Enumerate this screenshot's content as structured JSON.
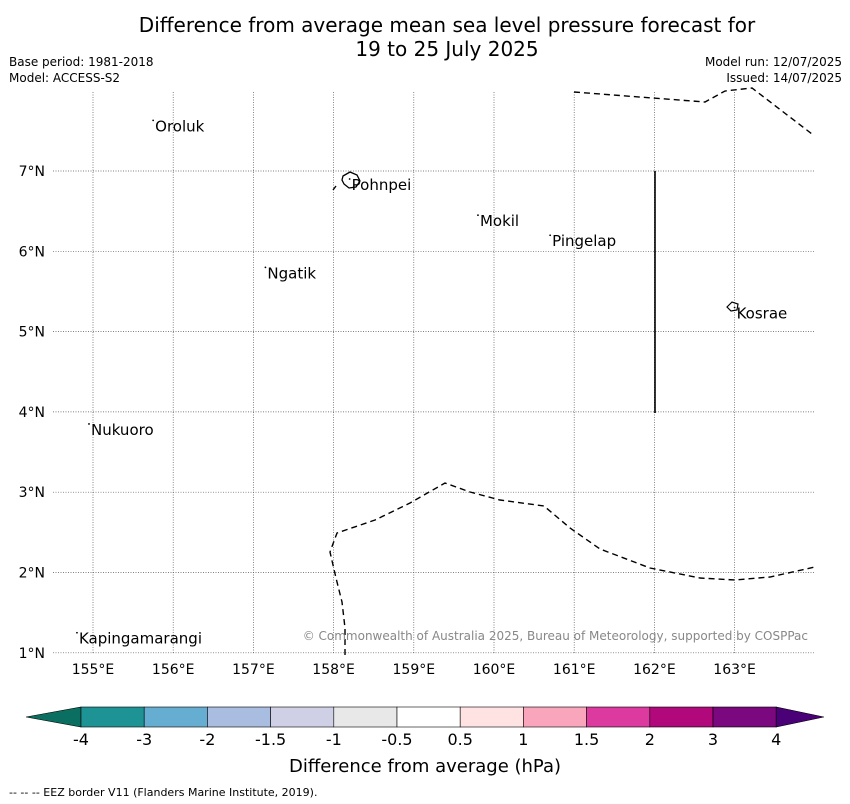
{
  "title_line1": "Difference from average mean sea level pressure forecast for",
  "title_line2": "19 to 25 July 2025",
  "base_period": "Base period: 1981-2018",
  "model": "Model: ACCESS-S2",
  "model_run": "Model run: 12/07/2025",
  "issued": "Issued: 14/07/2025",
  "lon_ticks": [
    "155°E",
    "156°E",
    "157°E",
    "158°E",
    "159°E",
    "160°E",
    "161°E",
    "162°E",
    "163°E"
  ],
  "lat_ticks": [
    "7°N",
    "6°N",
    "5°N",
    "4°N",
    "3°N",
    "2°N",
    "1°N"
  ],
  "places": [
    {
      "name": "Oroluk",
      "lon": 155.75,
      "lat": 7.63
    },
    {
      "name": "Pohnpei",
      "lon": 158.2,
      "lat": 6.9
    },
    {
      "name": "Mokil",
      "lon": 159.8,
      "lat": 6.45
    },
    {
      "name": "Pingelap",
      "lon": 160.7,
      "lat": 6.2
    },
    {
      "name": "Ngatik",
      "lon": 157.15,
      "lat": 5.8
    },
    {
      "name": "Kosrae",
      "lon": 163.0,
      "lat": 5.3
    },
    {
      "name": "Nukuoro",
      "lon": 154.95,
      "lat": 3.85
    },
    {
      "name": "Kapingamarangi",
      "lon": 154.8,
      "lat": 1.25
    }
  ],
  "copyright": "© Commonwealth of Australia 2025, Bureau of Meteorology, supported by COSPPac",
  "colorbar": {
    "title": "Difference from average (hPa)",
    "labels": [
      "-4",
      "-3",
      "-2",
      "-1.5",
      "-1",
      "-0.5",
      "0.5",
      "1",
      "1.5",
      "2",
      "3",
      "4"
    ],
    "colors": [
      "#1e9396",
      "#66aed1",
      "#a9bde0",
      "#cfcfe6",
      "#e8e8e8",
      "#ffffff",
      "#ffe2e2",
      "#f9a5bc",
      "#dc3a9f",
      "#b1097b",
      "#7b087f"
    ],
    "under_color": "#0a6e60",
    "over_color": "#4a0077"
  },
  "footer": "--  --  -- EEZ border V11 (Flanders Marine Institute, 2019)."
}
